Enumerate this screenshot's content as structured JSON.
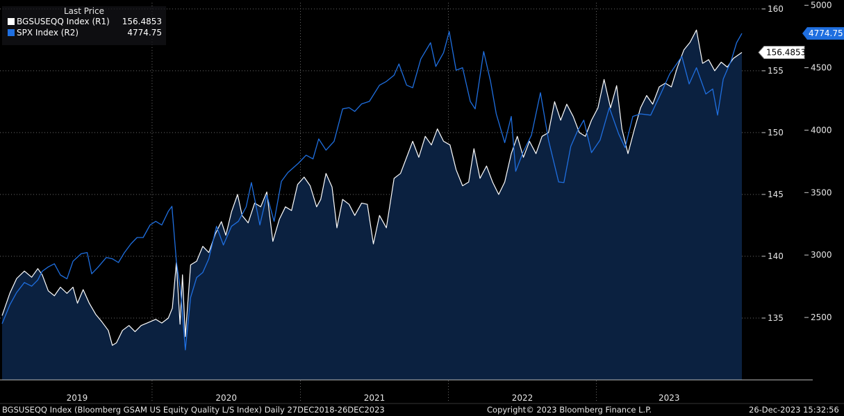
{
  "legend": {
    "title": "Last Price",
    "series": [
      {
        "label": "BGSUSEQQ Index  (R1)",
        "value": "156.4853",
        "color": "#ffffff"
      },
      {
        "label": "SPX Index  (R2)",
        "value": "4774.75",
        "color": "#1f6fe0"
      }
    ]
  },
  "footer": {
    "left": "BGSUSEQQ Index (Bloomberg GSAM US Equity Quality L/S Index)  Daily 27DEC2018-26DEC2023",
    "center": "Copyright© 2023 Bloomberg Finance L.P.",
    "right": "26-Dec-2023 15:32:56"
  },
  "chart_data": {
    "type": "line",
    "years": [
      "2019",
      "2020",
      "2021",
      "2022",
      "2023"
    ],
    "x_range": [
      "2018-12-27",
      "2023-12-26"
    ],
    "axes": {
      "r1": {
        "ticks": [
          "160",
          "155",
          "150",
          "145",
          "140",
          "135"
        ],
        "range": [
          130,
          160.5
        ]
      },
      "r2": {
        "ticks": [
          "5000",
          "4500",
          "4000",
          "3500",
          "3000",
          "2500"
        ],
        "range": [
          2000,
          5020
        ]
      }
    },
    "last_value_tags": {
      "r1": "156.4853",
      "r2": "4774.75"
    },
    "series": [
      {
        "name": "BGSUSEQQ Index",
        "axis": "r1",
        "style": "area",
        "line_color": "#ffffff",
        "fill_color": "#0b2140",
        "points": [
          [
            "2018-12-27",
            135.2
          ],
          [
            "2019-01-15",
            137.0
          ],
          [
            "2019-02-01",
            138.2
          ],
          [
            "2019-02-20",
            138.8
          ],
          [
            "2019-03-10",
            138.3
          ],
          [
            "2019-03-25",
            139.0
          ],
          [
            "2019-04-05",
            138.5
          ],
          [
            "2019-04-20",
            137.2
          ],
          [
            "2019-05-05",
            136.8
          ],
          [
            "2019-05-20",
            137.5
          ],
          [
            "2019-06-05",
            137.0
          ],
          [
            "2019-06-20",
            137.5
          ],
          [
            "2019-07-01",
            136.2
          ],
          [
            "2019-07-15",
            137.3
          ],
          [
            "2019-07-30",
            136.2
          ],
          [
            "2019-08-15",
            135.3
          ],
          [
            "2019-08-30",
            134.7
          ],
          [
            "2019-09-15",
            134.0
          ],
          [
            "2019-09-25",
            132.8
          ],
          [
            "2019-10-05",
            133.0
          ],
          [
            "2019-10-20",
            134.0
          ],
          [
            "2019-11-05",
            134.4
          ],
          [
            "2019-11-20",
            133.9
          ],
          [
            "2019-12-05",
            134.4
          ],
          [
            "2019-12-20",
            134.6
          ],
          [
            "2020-01-10",
            134.9
          ],
          [
            "2020-01-25",
            134.6
          ],
          [
            "2020-02-10",
            135.0
          ],
          [
            "2020-02-20",
            135.8
          ],
          [
            "2020-03-01",
            139.5
          ],
          [
            "2020-03-10",
            134.5
          ],
          [
            "2020-03-16",
            138.5
          ],
          [
            "2020-03-23",
            133.5
          ],
          [
            "2020-04-05",
            139.3
          ],
          [
            "2020-04-20",
            139.6
          ],
          [
            "2020-05-05",
            140.8
          ],
          [
            "2020-05-20",
            140.3
          ],
          [
            "2020-06-05",
            141.8
          ],
          [
            "2020-06-20",
            142.8
          ],
          [
            "2020-07-01",
            141.7
          ],
          [
            "2020-07-15",
            143.6
          ],
          [
            "2020-07-30",
            145.0
          ],
          [
            "2020-08-10",
            143.3
          ],
          [
            "2020-08-25",
            142.7
          ],
          [
            "2020-09-10",
            144.3
          ],
          [
            "2020-09-25",
            144.0
          ],
          [
            "2020-10-10",
            145.2
          ],
          [
            "2020-10-25",
            141.2
          ],
          [
            "2020-11-10",
            143.0
          ],
          [
            "2020-11-25",
            144.0
          ],
          [
            "2020-12-10",
            143.7
          ],
          [
            "2020-12-25",
            145.8
          ],
          [
            "2021-01-10",
            146.4
          ],
          [
            "2021-01-25",
            145.7
          ],
          [
            "2021-02-10",
            144.0
          ],
          [
            "2021-02-20",
            144.6
          ],
          [
            "2021-03-05",
            146.7
          ],
          [
            "2021-03-20",
            145.6
          ],
          [
            "2021-04-01",
            142.3
          ],
          [
            "2021-04-15",
            144.6
          ],
          [
            "2021-05-01",
            144.2
          ],
          [
            "2021-05-15",
            143.3
          ],
          [
            "2021-06-01",
            144.3
          ],
          [
            "2021-06-15",
            144.2
          ],
          [
            "2021-06-30",
            141.0
          ],
          [
            "2021-07-15",
            143.3
          ],
          [
            "2021-08-01",
            142.3
          ],
          [
            "2021-08-20",
            146.3
          ],
          [
            "2021-09-05",
            146.7
          ],
          [
            "2021-09-20",
            148.0
          ],
          [
            "2021-10-05",
            149.3
          ],
          [
            "2021-10-20",
            148.0
          ],
          [
            "2021-11-05",
            149.7
          ],
          [
            "2021-11-20",
            149.0
          ],
          [
            "2021-12-05",
            150.3
          ],
          [
            "2021-12-20",
            149.3
          ],
          [
            "2022-01-05",
            149.0
          ],
          [
            "2022-01-20",
            147.0
          ],
          [
            "2022-02-05",
            145.7
          ],
          [
            "2022-02-20",
            146.0
          ],
          [
            "2022-03-05",
            148.7
          ],
          [
            "2022-03-20",
            146.3
          ],
          [
            "2022-04-05",
            147.3
          ],
          [
            "2022-04-20",
            146.0
          ],
          [
            "2022-05-05",
            145.0
          ],
          [
            "2022-05-20",
            146.0
          ],
          [
            "2022-06-05",
            148.3
          ],
          [
            "2022-06-20",
            149.7
          ],
          [
            "2022-07-05",
            148.0
          ],
          [
            "2022-07-20",
            149.3
          ],
          [
            "2022-08-05",
            148.3
          ],
          [
            "2022-08-20",
            149.7
          ],
          [
            "2022-09-05",
            150.0
          ],
          [
            "2022-09-20",
            152.5
          ],
          [
            "2022-10-05",
            151.0
          ],
          [
            "2022-10-20",
            152.3
          ],
          [
            "2022-11-05",
            151.3
          ],
          [
            "2022-11-20",
            150.0
          ],
          [
            "2022-12-05",
            149.7
          ],
          [
            "2022-12-20",
            151.0
          ],
          [
            "2023-01-05",
            152.0
          ],
          [
            "2023-01-20",
            154.3
          ],
          [
            "2023-02-05",
            152.0
          ],
          [
            "2023-02-20",
            153.8
          ],
          [
            "2023-03-05",
            150.3
          ],
          [
            "2023-03-20",
            148.3
          ],
          [
            "2023-04-05",
            150.3
          ],
          [
            "2023-04-20",
            152.0
          ],
          [
            "2023-05-05",
            153.0
          ],
          [
            "2023-05-20",
            152.3
          ],
          [
            "2023-06-05",
            153.7
          ],
          [
            "2023-06-20",
            154.0
          ],
          [
            "2023-07-05",
            153.7
          ],
          [
            "2023-07-20",
            155.3
          ],
          [
            "2023-08-05",
            156.7
          ],
          [
            "2023-08-20",
            157.3
          ],
          [
            "2023-09-05",
            158.3
          ],
          [
            "2023-09-20",
            155.6
          ],
          [
            "2023-10-05",
            155.9
          ],
          [
            "2023-10-20",
            155.0
          ],
          [
            "2023-11-05",
            155.7
          ],
          [
            "2023-11-20",
            155.3
          ],
          [
            "2023-12-05",
            156.0
          ],
          [
            "2023-12-26",
            156.4853
          ]
        ]
      },
      {
        "name": "SPX Index",
        "axis": "r2",
        "style": "line",
        "line_color": "#1f6fe0",
        "points": [
          [
            "2018-12-27",
            2450
          ],
          [
            "2019-01-15",
            2600
          ],
          [
            "2019-02-01",
            2700
          ],
          [
            "2019-02-20",
            2780
          ],
          [
            "2019-03-10",
            2750
          ],
          [
            "2019-03-25",
            2800
          ],
          [
            "2019-04-05",
            2870
          ],
          [
            "2019-04-20",
            2905
          ],
          [
            "2019-05-05",
            2930
          ],
          [
            "2019-05-20",
            2840
          ],
          [
            "2019-06-05",
            2810
          ],
          [
            "2019-06-20",
            2950
          ],
          [
            "2019-07-10",
            3010
          ],
          [
            "2019-07-25",
            3020
          ],
          [
            "2019-08-05",
            2850
          ],
          [
            "2019-08-20",
            2900
          ],
          [
            "2019-09-10",
            2980
          ],
          [
            "2019-09-25",
            2970
          ],
          [
            "2019-10-10",
            2940
          ],
          [
            "2019-10-25",
            3020
          ],
          [
            "2019-11-10",
            3090
          ],
          [
            "2019-11-25",
            3140
          ],
          [
            "2019-12-10",
            3140
          ],
          [
            "2019-12-27",
            3240
          ],
          [
            "2020-01-10",
            3270
          ],
          [
            "2020-01-25",
            3240
          ],
          [
            "2020-02-10",
            3350
          ],
          [
            "2020-02-19",
            3390
          ],
          [
            "2020-03-01",
            2950
          ],
          [
            "2020-03-10",
            2740
          ],
          [
            "2020-03-16",
            2530
          ],
          [
            "2020-03-23",
            2240
          ],
          [
            "2020-04-05",
            2660
          ],
          [
            "2020-04-20",
            2820
          ],
          [
            "2020-05-05",
            2860
          ],
          [
            "2020-05-20",
            2970
          ],
          [
            "2020-06-08",
            3230
          ],
          [
            "2020-06-25",
            3080
          ],
          [
            "2020-07-15",
            3230
          ],
          [
            "2020-08-01",
            3270
          ],
          [
            "2020-08-20",
            3385
          ],
          [
            "2020-09-02",
            3580
          ],
          [
            "2020-09-23",
            3240
          ],
          [
            "2020-10-10",
            3480
          ],
          [
            "2020-10-28",
            3270
          ],
          [
            "2020-11-15",
            3590
          ],
          [
            "2020-12-01",
            3660
          ],
          [
            "2020-12-27",
            3735
          ],
          [
            "2021-01-15",
            3800
          ],
          [
            "2021-02-01",
            3770
          ],
          [
            "2021-02-15",
            3930
          ],
          [
            "2021-03-05",
            3840
          ],
          [
            "2021-03-25",
            3910
          ],
          [
            "2021-04-15",
            4170
          ],
          [
            "2021-05-01",
            4180
          ],
          [
            "2021-05-15",
            4150
          ],
          [
            "2021-06-01",
            4210
          ],
          [
            "2021-06-20",
            4230
          ],
          [
            "2021-07-15",
            4360
          ],
          [
            "2021-08-01",
            4390
          ],
          [
            "2021-08-20",
            4440
          ],
          [
            "2021-09-01",
            4530
          ],
          [
            "2021-09-20",
            4360
          ],
          [
            "2021-10-05",
            4340
          ],
          [
            "2021-10-25",
            4570
          ],
          [
            "2021-11-18",
            4700
          ],
          [
            "2021-12-01",
            4510
          ],
          [
            "2021-12-20",
            4620
          ],
          [
            "2022-01-03",
            4790
          ],
          [
            "2022-01-20",
            4480
          ],
          [
            "2022-02-05",
            4500
          ],
          [
            "2022-02-24",
            4230
          ],
          [
            "2022-03-08",
            4170
          ],
          [
            "2022-03-29",
            4630
          ],
          [
            "2022-04-15",
            4390
          ],
          [
            "2022-04-29",
            4130
          ],
          [
            "2022-05-20",
            3900
          ],
          [
            "2022-06-05",
            4110
          ],
          [
            "2022-06-16",
            3670
          ],
          [
            "2022-07-05",
            3830
          ],
          [
            "2022-07-25",
            3960
          ],
          [
            "2022-08-16",
            4300
          ],
          [
            "2022-09-05",
            3920
          ],
          [
            "2022-09-30",
            3585
          ],
          [
            "2022-10-13",
            3580
          ],
          [
            "2022-10-30",
            3870
          ],
          [
            "2022-11-15",
            3990
          ],
          [
            "2022-12-01",
            4080
          ],
          [
            "2022-12-20",
            3820
          ],
          [
            "2023-01-10",
            3920
          ],
          [
            "2023-02-02",
            4180
          ],
          [
            "2023-02-25",
            3970
          ],
          [
            "2023-03-13",
            3860
          ],
          [
            "2023-04-01",
            4110
          ],
          [
            "2023-04-20",
            4130
          ],
          [
            "2023-05-15",
            4120
          ],
          [
            "2023-06-10",
            4300
          ],
          [
            "2023-07-01",
            4450
          ],
          [
            "2023-07-31",
            4590
          ],
          [
            "2023-08-18",
            4370
          ],
          [
            "2023-09-05",
            4500
          ],
          [
            "2023-09-28",
            4290
          ],
          [
            "2023-10-15",
            4330
          ],
          [
            "2023-10-27",
            4120
          ],
          [
            "2023-11-10",
            4410
          ],
          [
            "2023-11-30",
            4560
          ],
          [
            "2023-12-13",
            4700
          ],
          [
            "2023-12-26",
            4774.75
          ]
        ]
      }
    ]
  }
}
